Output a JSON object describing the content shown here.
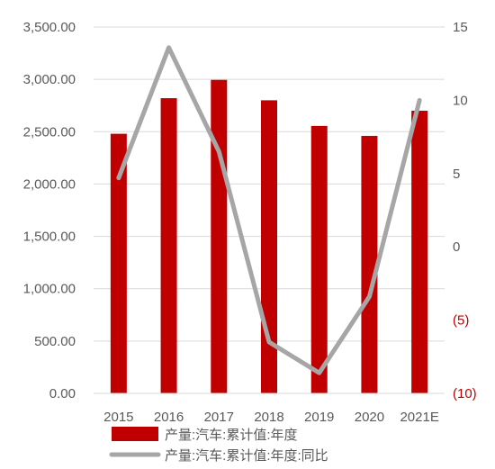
{
  "chart_data": {
    "type": "bar+line",
    "categories": [
      "2015",
      "2016",
      "2017",
      "2018",
      "2019",
      "2020",
      "2021E"
    ],
    "series": [
      {
        "name": "产量:汽车:累计值:年度",
        "type": "bar",
        "axis": "left",
        "color": "#c00000",
        "values": [
          2480,
          2820,
          2995,
          2800,
          2555,
          2460,
          2700
        ]
      },
      {
        "name": "产量:汽车:累计值:年度:同比",
        "type": "line",
        "axis": "right",
        "color": "#a6a6a6",
        "values": [
          4.7,
          13.6,
          6.5,
          -6.5,
          -8.6,
          -3.4,
          10.0
        ]
      }
    ],
    "y_left": {
      "ylim": [
        0,
        3500
      ],
      "ticks": [
        "0.00",
        "500.00",
        "1,000.00",
        "1,500.00",
        "2,000.00",
        "2,500.00",
        "3,000.00",
        "3,500.00"
      ],
      "tick_values": [
        0,
        500,
        1000,
        1500,
        2000,
        2500,
        3000,
        3500
      ]
    },
    "y_right": {
      "ylim": [
        -10,
        15
      ],
      "ticks": [
        "(10)",
        "(5)",
        "0",
        "5",
        "10",
        "15"
      ],
      "tick_values": [
        -10,
        -5,
        0,
        5,
        10,
        15
      ],
      "negative_color": "#c00000",
      "positive_color": "#595959"
    },
    "grid": true,
    "legend_position": "bottom"
  }
}
